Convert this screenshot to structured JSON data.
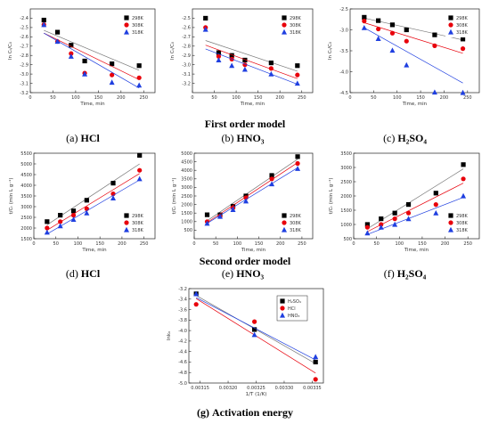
{
  "sections": {
    "first_order": "First order model",
    "second_order": "Second order model"
  },
  "captions": [
    {
      "label": "(a)",
      "acid": "HCl"
    },
    {
      "label": "(b)",
      "acid": "HNO₃"
    },
    {
      "label": "(c)",
      "acid": "H₂SO₄"
    },
    {
      "label": "(d)",
      "acid": "HCl"
    },
    {
      "label": "(e)",
      "acid": "HNO₃"
    },
    {
      "label": "(f)",
      "acid": "H₂SO₄"
    },
    {
      "label": "(g)",
      "acid": "Activation energy"
    }
  ],
  "series_colors": {
    "298K": "#000000",
    "308K": "#e8000b",
    "318K": "#1f3fe0"
  },
  "chart_data": [
    {
      "id": "a",
      "type": "scatter",
      "xlabel": "Time, min",
      "ylabel": "ln Cₜ/C₀",
      "xlim": [
        0,
        275
      ],
      "ylim": [
        -3.2,
        -2.3
      ],
      "xticks": [
        0,
        50,
        100,
        150,
        200,
        250
      ],
      "yticks": [
        -2.4,
        -2.5,
        -2.6,
        -2.7,
        -2.8,
        -2.9,
        -3.0,
        -3.1,
        -3.2
      ],
      "legend": "upper-right",
      "markers": [
        "square",
        "circle",
        "triangle"
      ],
      "series": [
        {
          "name": "298K",
          "x": [
            30,
            60,
            90,
            120,
            180,
            240
          ],
          "y": [
            -2.42,
            -2.55,
            -2.69,
            -2.86,
            -2.89,
            -2.91
          ],
          "fit": [
            [
              30,
              -2.53
            ],
            [
              240,
              -2.96
            ]
          ]
        },
        {
          "name": "308K",
          "x": [
            30,
            60,
            90,
            120,
            180,
            240
          ],
          "y": [
            -2.47,
            -2.65,
            -2.78,
            -2.99,
            -3.01,
            -3.04
          ],
          "fit": [
            [
              30,
              -2.56
            ],
            [
              240,
              -3.06
            ]
          ]
        },
        {
          "name": "318K",
          "x": [
            30,
            60,
            90,
            120,
            180,
            240
          ],
          "y": [
            -2.47,
            -2.65,
            -2.81,
            -3.0,
            -3.09,
            -3.12
          ],
          "fit": [
            [
              30,
              -2.56
            ],
            [
              240,
              -3.15
            ]
          ]
        }
      ]
    },
    {
      "id": "b",
      "type": "scatter",
      "xlabel": "Time, min",
      "ylabel": "ln Cₜ/C₀",
      "xlim": [
        0,
        275
      ],
      "ylim": [
        -3.3,
        -2.4
      ],
      "xticks": [
        0,
        50,
        100,
        150,
        200,
        250
      ],
      "yticks": [
        -2.5,
        -2.6,
        -2.7,
        -2.8,
        -2.9,
        -3.0,
        -3.1,
        -3.2
      ],
      "legend": "upper-right",
      "markers": [
        "square",
        "circle",
        "triangle"
      ],
      "series": [
        {
          "name": "298K",
          "x": [
            30,
            60,
            90,
            120,
            180,
            240
          ],
          "y": [
            -2.5,
            -2.87,
            -2.9,
            -2.95,
            -2.98,
            -3.01
          ],
          "fit": [
            [
              30,
              -2.74
            ],
            [
              240,
              -3.07
            ]
          ]
        },
        {
          "name": "308K",
          "x": [
            30,
            60,
            90,
            120,
            180,
            240
          ],
          "y": [
            -2.6,
            -2.91,
            -2.94,
            -3.0,
            -3.04,
            -3.11
          ],
          "fit": [
            [
              30,
              -2.79
            ],
            [
              240,
              -3.15
            ]
          ]
        },
        {
          "name": "318K",
          "x": [
            30,
            60,
            90,
            120,
            180,
            240
          ],
          "y": [
            -2.62,
            -2.95,
            -3.01,
            -3.05,
            -3.1,
            -3.2
          ],
          "fit": [
            [
              30,
              -2.83
            ],
            [
              240,
              -3.21
            ]
          ]
        }
      ]
    },
    {
      "id": "c",
      "type": "scatter",
      "xlabel": "Time, min",
      "ylabel": "ln Cₜ/C₀",
      "xlim": [
        0,
        275
      ],
      "ylim": [
        -4.5,
        -2.5
      ],
      "xticks": [
        0,
        50,
        100,
        150,
        200,
        250
      ],
      "yticks": [
        -2.5,
        -3.0,
        -3.5,
        -4.0,
        -4.5
      ],
      "legend": "upper-right",
      "markers": [
        "square",
        "circle",
        "triangle"
      ],
      "series": [
        {
          "name": "298K",
          "x": [
            30,
            60,
            90,
            120,
            180,
            240
          ],
          "y": [
            -2.7,
            -2.78,
            -2.88,
            -3.0,
            -3.12,
            -3.22
          ],
          "fit": [
            [
              30,
              -2.72
            ],
            [
              240,
              -3.24
            ]
          ]
        },
        {
          "name": "308K",
          "x": [
            30,
            60,
            90,
            120,
            180,
            240
          ],
          "y": [
            -2.79,
            -2.98,
            -3.08,
            -3.27,
            -3.38,
            -3.45
          ],
          "fit": [
            [
              30,
              -2.83
            ],
            [
              240,
              -3.56
            ]
          ]
        },
        {
          "name": "318K",
          "x": [
            30,
            60,
            90,
            120,
            180,
            240
          ],
          "y": [
            -2.95,
            -3.21,
            -3.49,
            -3.84,
            -4.49,
            -4.5
          ],
          "fit": [
            [
              30,
              -2.95
            ],
            [
              240,
              -4.27
            ]
          ]
        }
      ]
    },
    {
      "id": "d",
      "type": "scatter",
      "xlabel": "Time, min",
      "ylabel": "t/Cₜ (min L g⁻¹)",
      "xlim": [
        0,
        275
      ],
      "ylim": [
        1500,
        5500
      ],
      "xticks": [
        0,
        50,
        100,
        150,
        200,
        250
      ],
      "yticks": [
        1500,
        2000,
        2500,
        3000,
        3500,
        4000,
        4500,
        5000,
        5500
      ],
      "legend": "lower-right",
      "markers": [
        "square",
        "circle",
        "triangle"
      ],
      "series": [
        {
          "name": "298K",
          "x": [
            30,
            60,
            90,
            120,
            180,
            240
          ],
          "y": [
            2300,
            2600,
            2800,
            3300,
            4100,
            5400
          ],
          "fit": [
            [
              30,
              2150
            ],
            [
              240,
              5000
            ]
          ]
        },
        {
          "name": "308K",
          "x": [
            30,
            60,
            90,
            120,
            180,
            240
          ],
          "y": [
            2000,
            2300,
            2600,
            2900,
            3600,
            4700
          ],
          "fit": [
            [
              30,
              1900
            ],
            [
              240,
              4550
            ]
          ]
        },
        {
          "name": "318K",
          "x": [
            30,
            60,
            90,
            120,
            180,
            240
          ],
          "y": [
            1800,
            2100,
            2400,
            2700,
            3400,
            4300
          ],
          "fit": [
            [
              30,
              1720
            ],
            [
              240,
              4250
            ]
          ]
        }
      ]
    },
    {
      "id": "e",
      "type": "scatter",
      "xlabel": "Time, min",
      "ylabel": "t/Cₜ (min L g⁻¹)",
      "xlim": [
        0,
        275
      ],
      "ylim": [
        0,
        5000
      ],
      "xticks": [
        0,
        50,
        100,
        150,
        200,
        250
      ],
      "yticks": [
        500,
        1000,
        1500,
        2000,
        2500,
        3000,
        3500,
        4000,
        4500,
        5000
      ],
      "legend": "lower-right",
      "markers": [
        "square",
        "circle",
        "triangle"
      ],
      "series": [
        {
          "name": "298K",
          "x": [
            30,
            60,
            90,
            120,
            180,
            240
          ],
          "y": [
            1400,
            1400,
            1900,
            2500,
            3700,
            4800
          ],
          "fit": [
            [
              30,
              1050
            ],
            [
              240,
              4650
            ]
          ]
        },
        {
          "name": "308K",
          "x": [
            30,
            60,
            90,
            120,
            180,
            240
          ],
          "y": [
            1000,
            1300,
            1800,
            2400,
            3500,
            4400
          ],
          "fit": [
            [
              30,
              950
            ],
            [
              240,
              4450
            ]
          ]
        },
        {
          "name": "318K",
          "x": [
            30,
            60,
            90,
            120,
            180,
            240
          ],
          "y": [
            900,
            1300,
            1700,
            2200,
            3200,
            4100
          ],
          "fit": [
            [
              30,
              900
            ],
            [
              240,
              4150
            ]
          ]
        }
      ]
    },
    {
      "id": "f",
      "type": "scatter",
      "xlabel": "Time, min",
      "ylabel": "t/Cₜ (min L g⁻¹)",
      "xlim": [
        0,
        275
      ],
      "ylim": [
        500,
        3500
      ],
      "xticks": [
        0,
        50,
        100,
        150,
        200,
        250
      ],
      "yticks": [
        500,
        1000,
        1500,
        2000,
        2500,
        3000,
        3500
      ],
      "legend": "lower-right",
      "markers": [
        "square",
        "circle",
        "triangle"
      ],
      "series": [
        {
          "name": "298K",
          "x": [
            30,
            60,
            90,
            120,
            180,
            240
          ],
          "y": [
            1000,
            1200,
            1400,
            1700,
            2100,
            3100
          ],
          "fit": [
            [
              30,
              850
            ],
            [
              240,
              2950
            ]
          ]
        },
        {
          "name": "308K",
          "x": [
            30,
            60,
            90,
            120,
            180,
            240
          ],
          "y": [
            900,
            1000,
            1200,
            1400,
            1700,
            2600
          ],
          "fit": [
            [
              30,
              750
            ],
            [
              240,
              2450
            ]
          ]
        },
        {
          "name": "318K",
          "x": [
            30,
            60,
            90,
            120,
            180,
            240
          ],
          "y": [
            700,
            900,
            1000,
            1200,
            1400,
            2000
          ],
          "fit": [
            [
              30,
              650
            ],
            [
              240,
              1950
            ]
          ]
        }
      ]
    },
    {
      "id": "g",
      "type": "scatter",
      "xlabel": "1/T (1/K)",
      "ylabel": "lnkₐ",
      "xlim": [
        0.00313,
        0.00337
      ],
      "ylim": [
        -5.0,
        -3.2
      ],
      "xticks": [
        0.00315,
        0.0032,
        0.00325,
        0.0033,
        0.00335
      ],
      "xticklabels": [
        "0.00315",
        "0.00320",
        "0.00325",
        "0.00330",
        "0.00335"
      ],
      "yticks": [
        -3.2,
        -3.4,
        -3.6,
        -3.8,
        -4.0,
        -4.2,
        -4.4,
        -4.6,
        -4.8,
        -5.0
      ],
      "legend": "upper-right",
      "markers": [
        "square",
        "circle",
        "triangle"
      ],
      "series": [
        {
          "name": "H₂SO₄",
          "color": "#000000",
          "x": [
            0.003143,
            0.003247,
            0.003356
          ],
          "y": [
            -3.3,
            -3.98,
            -4.6
          ],
          "fit": [
            [
              0.003143,
              -3.33
            ],
            [
              0.003356,
              -4.63
            ]
          ]
        },
        {
          "name": "HCl",
          "color": "#e8000b",
          "x": [
            0.003143,
            0.003247,
            0.003356
          ],
          "y": [
            -3.5,
            -3.83,
            -4.93
          ],
          "fit": [
            [
              0.003143,
              -3.39
            ],
            [
              0.003356,
              -4.81
            ]
          ]
        },
        {
          "name": "HNO₃",
          "color": "#1f3fe0",
          "x": [
            0.003143,
            0.003247,
            0.003356
          ],
          "y": [
            -3.3,
            -4.08,
            -4.5
          ],
          "fit": [
            [
              0.003143,
              -3.37
            ],
            [
              0.003356,
              -4.56
            ]
          ]
        }
      ]
    }
  ]
}
